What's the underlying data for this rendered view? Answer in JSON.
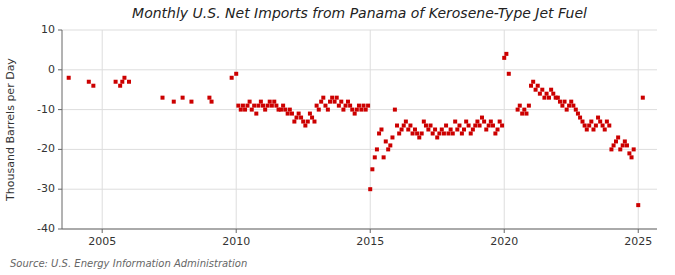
{
  "chart_data": {
    "type": "scatter",
    "title": "Monthly U.S. Net Imports from Panama of Kerosene-Type Jet Fuel",
    "y_label": "Thousand Barrels per Day",
    "annotation": "Source: U.S. Energy Information Administration",
    "color": "#cc0000",
    "marker": "square",
    "grid": true,
    "xlim": [
      2003.5,
      2025.7
    ],
    "xticks": [
      2005,
      2010,
      2015,
      2020,
      2025
    ],
    "ylim": [
      -40,
      10
    ],
    "yticks": [
      -40,
      -30,
      -20,
      -10,
      0,
      10
    ],
    "x": [
      2003.75,
      2004.5,
      2004.67,
      2005.5,
      2005.67,
      2005.75,
      2005.83,
      2006.0,
      2007.25,
      2007.67,
      2008.0,
      2008.33,
      2009.0,
      2009.08,
      2009.83,
      2010.0,
      2010.08,
      2010.17,
      2010.25,
      2010.33,
      2010.42,
      2010.5,
      2010.58,
      2010.67,
      2010.75,
      2010.83,
      2010.92,
      2011.0,
      2011.08,
      2011.17,
      2011.25,
      2011.33,
      2011.42,
      2011.5,
      2011.58,
      2011.67,
      2011.75,
      2011.83,
      2011.92,
      2012.0,
      2012.08,
      2012.17,
      2012.25,
      2012.33,
      2012.42,
      2012.5,
      2012.58,
      2012.67,
      2012.75,
      2012.83,
      2012.92,
      2013.0,
      2013.08,
      2013.17,
      2013.25,
      2013.33,
      2013.42,
      2013.5,
      2013.58,
      2013.67,
      2013.75,
      2013.83,
      2013.92,
      2014.0,
      2014.08,
      2014.17,
      2014.25,
      2014.33,
      2014.42,
      2014.5,
      2014.58,
      2014.67,
      2014.75,
      2014.83,
      2014.92,
      2015.0,
      2015.08,
      2015.17,
      2015.25,
      2015.33,
      2015.42,
      2015.5,
      2015.58,
      2015.67,
      2015.75,
      2015.83,
      2015.92,
      2016.0,
      2016.08,
      2016.17,
      2016.25,
      2016.33,
      2016.42,
      2016.5,
      2016.58,
      2016.67,
      2016.75,
      2016.83,
      2016.92,
      2017.0,
      2017.08,
      2017.17,
      2017.25,
      2017.33,
      2017.42,
      2017.5,
      2017.58,
      2017.67,
      2017.75,
      2017.83,
      2017.92,
      2018.0,
      2018.08,
      2018.17,
      2018.25,
      2018.33,
      2018.42,
      2018.5,
      2018.58,
      2018.67,
      2018.75,
      2018.83,
      2018.92,
      2019.0,
      2019.08,
      2019.17,
      2019.25,
      2019.33,
      2019.42,
      2019.5,
      2019.58,
      2019.67,
      2019.75,
      2019.83,
      2019.92,
      2020.0,
      2020.08,
      2020.17,
      2020.5,
      2020.58,
      2020.67,
      2020.75,
      2020.83,
      2020.92,
      2021.0,
      2021.08,
      2021.17,
      2021.25,
      2021.33,
      2021.42,
      2021.5,
      2021.58,
      2021.67,
      2021.75,
      2021.83,
      2021.92,
      2022.0,
      2022.08,
      2022.17,
      2022.25,
      2022.33,
      2022.42,
      2022.5,
      2022.58,
      2022.67,
      2022.75,
      2022.83,
      2022.92,
      2023.0,
      2023.08,
      2023.17,
      2023.25,
      2023.33,
      2023.42,
      2023.5,
      2023.58,
      2023.67,
      2023.75,
      2023.83,
      2023.92,
      2024.0,
      2024.08,
      2024.17,
      2024.25,
      2024.33,
      2024.42,
      2024.5,
      2024.58,
      2024.67,
      2024.75,
      2024.83,
      2025.0,
      2025.17
    ],
    "values": [
      -2,
      -3,
      -4,
      -3,
      -4,
      -3,
      -2,
      -3,
      -7,
      -8,
      -7,
      -8,
      -7,
      -8,
      -2,
      -1,
      -9,
      -10,
      -9,
      -10,
      -9,
      -8,
      -10,
      -9,
      -11,
      -9,
      -8,
      -9,
      -10,
      -9,
      -8,
      -9,
      -8,
      -9,
      -10,
      -10,
      -9,
      -10,
      -11,
      -10,
      -11,
      -13,
      -12,
      -11,
      -12,
      -13,
      -14,
      -13,
      -11,
      -12,
      -13,
      -9,
      -10,
      -8,
      -7,
      -9,
      -10,
      -8,
      -7,
      -8,
      -7,
      -9,
      -8,
      -10,
      -9,
      -8,
      -9,
      -10,
      -11,
      -10,
      -9,
      -10,
      -9,
      -10,
      -9,
      -30,
      -25,
      -22,
      -20,
      -16,
      -15,
      -22,
      -18,
      -20,
      -19,
      -17,
      -10,
      -14,
      -16,
      -15,
      -14,
      -13,
      -15,
      -14,
      -16,
      -15,
      -16,
      -17,
      -16,
      -13,
      -14,
      -15,
      -14,
      -16,
      -15,
      -17,
      -16,
      -15,
      -16,
      -14,
      -16,
      -15,
      -16,
      -13,
      -15,
      -14,
      -16,
      -15,
      -13,
      -14,
      -16,
      -15,
      -14,
      -13,
      -14,
      -12,
      -13,
      -15,
      -14,
      -13,
      -14,
      -16,
      -15,
      -13,
      -14,
      3,
      4,
      -1,
      -10,
      -9,
      -11,
      -10,
      -11,
      -9,
      -4,
      -3,
      -5,
      -4,
      -6,
      -5,
      -7,
      -6,
      -7,
      -5,
      -6,
      -7,
      -7,
      -8,
      -9,
      -8,
      -10,
      -9,
      -8,
      -9,
      -10,
      -11,
      -12,
      -13,
      -14,
      -15,
      -14,
      -13,
      -15,
      -14,
      -12,
      -13,
      -14,
      -15,
      -13,
      -14,
      -20,
      -19,
      -18,
      -17,
      -20,
      -19,
      -18,
      -19,
      -21,
      -22,
      -20,
      -34,
      -7
    ]
  }
}
